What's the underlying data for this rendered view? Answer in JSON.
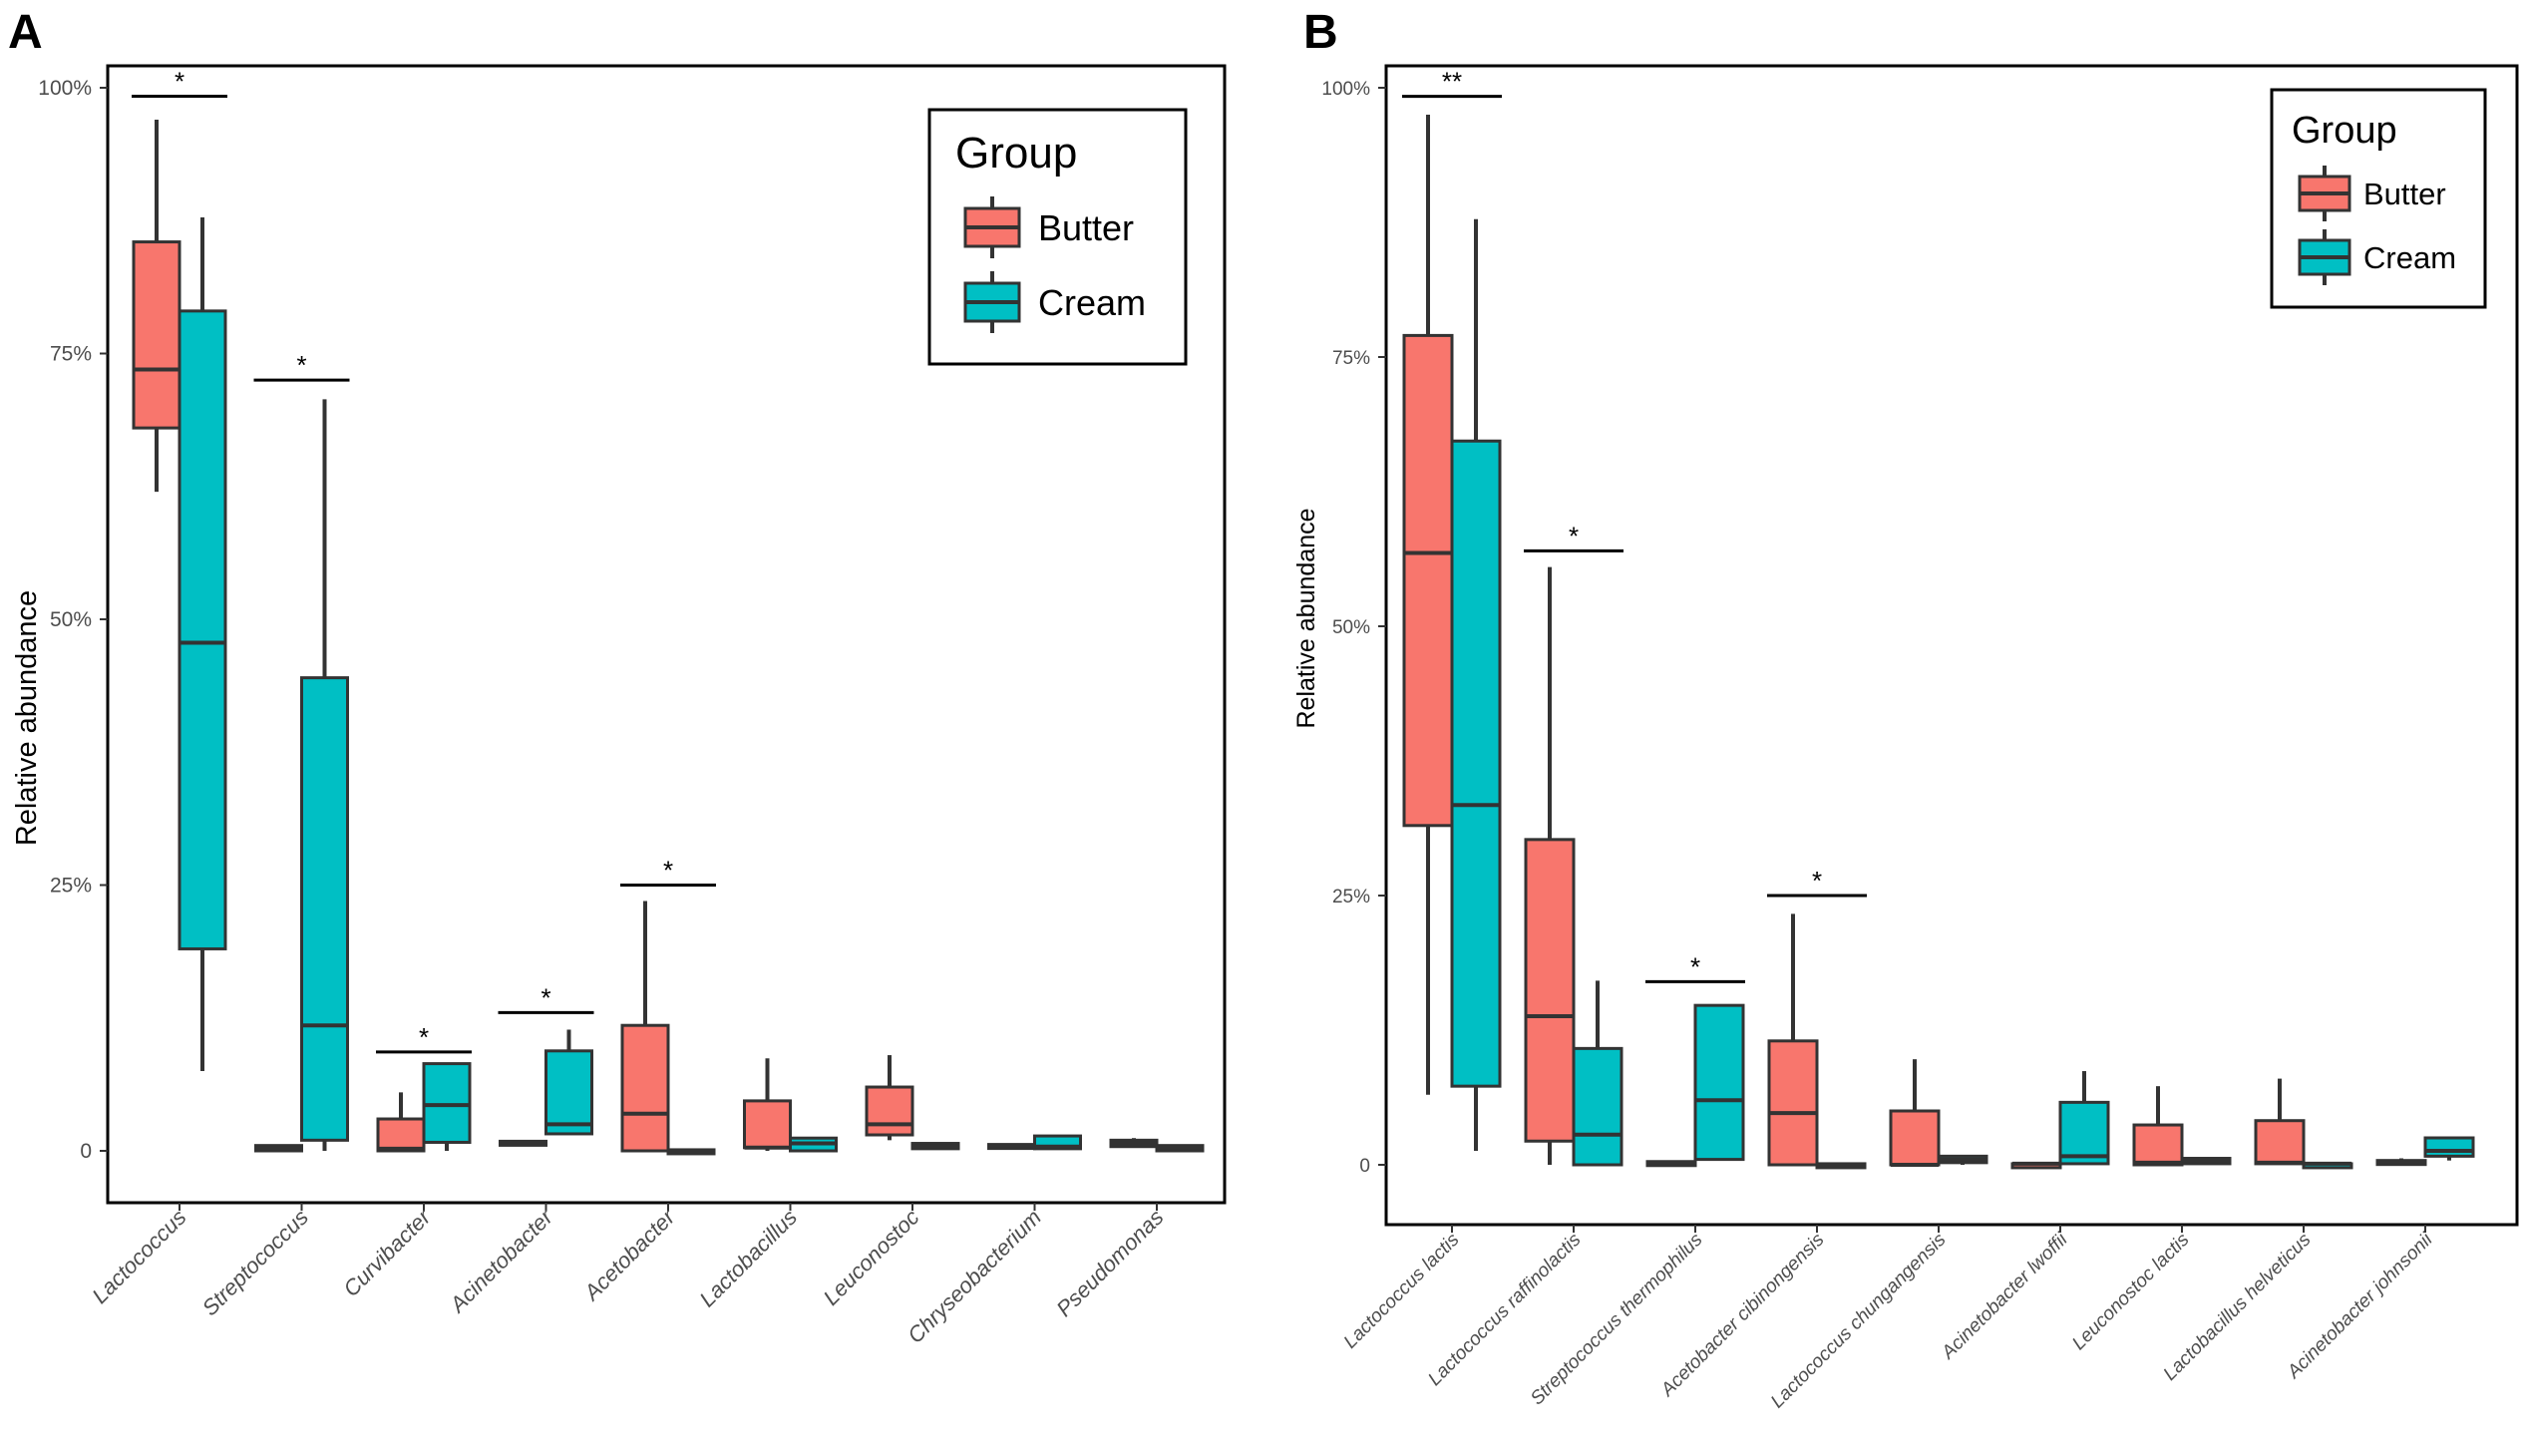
{
  "legend": {
    "title": "Group",
    "items": [
      {
        "label": "Butter",
        "color": "#F8766D"
      },
      {
        "label": "Cream",
        "color": "#00BFC4"
      }
    ]
  },
  "chart_data": [
    {
      "type": "boxplot",
      "panel_label": "A",
      "ylabel": "Relative abundance",
      "ylim": [
        -0.05,
        1.0
      ],
      "yticks": [
        0,
        0.25,
        0.5,
        0.75,
        1.0
      ],
      "ytick_labels": [
        "0",
        "25%",
        "50%",
        "75%",
        "100%"
      ],
      "categories": [
        "Lactococcus",
        "Streptococcus",
        "Curvibacter",
        "Acinetobacter",
        "Acetobacter",
        "Lactobacillus",
        "Leuconostoc",
        "Chryseobacterium",
        "Pseudomonas"
      ],
      "series": [
        {
          "name": "Butter",
          "boxes": [
            {
              "min": 0.62,
              "q1": 0.68,
              "median": 0.735,
              "q3": 0.855,
              "max": 0.97
            },
            {
              "min": 0.0,
              "q1": 0.0,
              "median": 0.002,
              "q3": 0.005,
              "max": 0.006
            },
            {
              "min": 0.0,
              "q1": 0.0,
              "median": 0.002,
              "q3": 0.03,
              "max": 0.055
            },
            {
              "min": 0.007,
              "q1": 0.007,
              "median": 0.008,
              "q3": 0.009,
              "max": 0.009
            },
            {
              "min": 0.0,
              "q1": 0.0,
              "median": 0.035,
              "q3": 0.118,
              "max": 0.235
            },
            {
              "min": 0.0,
              "q1": 0.003,
              "median": 0.003,
              "q3": 0.047,
              "max": 0.087
            },
            {
              "min": 0.01,
              "q1": 0.015,
              "median": 0.025,
              "q3": 0.06,
              "max": 0.09
            },
            {
              "min": 0.003,
              "q1": 0.003,
              "median": 0.005,
              "q3": 0.006,
              "max": 0.007
            },
            {
              "min": 0.004,
              "q1": 0.004,
              "median": 0.007,
              "q3": 0.01,
              "max": 0.012
            }
          ]
        },
        {
          "name": "Cream",
          "boxes": [
            {
              "min": 0.075,
              "q1": 0.19,
              "median": 0.478,
              "q3": 0.79,
              "max": 0.878
            },
            {
              "min": 0.0,
              "q1": 0.01,
              "median": 0.118,
              "q3": 0.445,
              "max": 0.707
            },
            {
              "min": 0.0,
              "q1": 0.008,
              "median": 0.043,
              "q3": 0.082,
              "max": 0.082
            },
            {
              "min": 0.016,
              "q1": 0.016,
              "median": 0.025,
              "q3": 0.094,
              "max": 0.114
            },
            {
              "min": 0.0,
              "q1": 0.0,
              "median": 0.0,
              "q3": 0.001,
              "max": 0.001
            },
            {
              "min": 0.0,
              "q1": 0.0,
              "median": 0.007,
              "q3": 0.012,
              "max": 0.013
            },
            {
              "min": 0.002,
              "q1": 0.002,
              "median": 0.004,
              "q3": 0.007,
              "max": 0.007
            },
            {
              "min": 0.002,
              "q1": 0.002,
              "median": 0.004,
              "q3": 0.014,
              "max": 0.014
            },
            {
              "min": 0.0,
              "q1": 0.0,
              "median": 0.003,
              "q3": 0.005,
              "max": 0.005
            }
          ]
        }
      ],
      "significance": [
        {
          "category_index": 0,
          "label": "*",
          "y": 0.992
        },
        {
          "category_index": 1,
          "label": "*",
          "y": 0.725
        },
        {
          "category_index": 2,
          "label": "*",
          "y": 0.093
        },
        {
          "category_index": 3,
          "label": "*",
          "y": 0.13
        },
        {
          "category_index": 4,
          "label": "*",
          "y": 0.25
        }
      ]
    },
    {
      "type": "boxplot",
      "panel_label": "B",
      "ylabel": "Relative abundance",
      "ylim": [
        -0.05,
        1.0
      ],
      "yticks": [
        0,
        0.25,
        0.5,
        0.75,
        1.0
      ],
      "ytick_labels": [
        "0",
        "25%",
        "50%",
        "75%",
        "100%"
      ],
      "categories": [
        "Lactococcus lactis",
        "Lactococcus raffinolactis",
        "Streptococcus thermophilus",
        "Acetobacter cibinongensis",
        "Lactococcus chungangensis",
        "Acinetobacter lwoffii",
        "Leuconostoc lactis",
        "Lactobacillus helveticus",
        "Acinetobacter johnsonii"
      ],
      "series": [
        {
          "name": "Butter",
          "boxes": [
            {
              "min": 0.065,
              "q1": 0.315,
              "median": 0.568,
              "q3": 0.77,
              "max": 0.975
            },
            {
              "min": 0.0,
              "q1": 0.022,
              "median": 0.138,
              "q3": 0.302,
              "max": 0.555
            },
            {
              "min": 0.0,
              "q1": 0.0,
              "median": 0.002,
              "q3": 0.003,
              "max": 0.004
            },
            {
              "min": 0.0,
              "q1": 0.0,
              "median": 0.048,
              "q3": 0.115,
              "max": 0.233
            },
            {
              "min": 0.0,
              "q1": 0.0,
              "median": 0.0,
              "q3": 0.05,
              "max": 0.098
            },
            {
              "min": 0.0,
              "q1": 0.0,
              "median": 0.001,
              "q3": 0.001,
              "max": 0.002
            },
            {
              "min": 0.0,
              "q1": 0.0,
              "median": 0.002,
              "q3": 0.037,
              "max": 0.073
            },
            {
              "min": 0.0,
              "q1": 0.001,
              "median": 0.002,
              "q3": 0.041,
              "max": 0.08
            },
            {
              "min": 0.002,
              "q1": 0.002,
              "median": 0.003,
              "q3": 0.004,
              "max": 0.006
            }
          ]
        },
        {
          "name": "Cream",
          "boxes": [
            {
              "min": 0.013,
              "q1": 0.073,
              "median": 0.334,
              "q3": 0.672,
              "max": 0.878
            },
            {
              "min": 0.0,
              "q1": 0.0,
              "median": 0.028,
              "q3": 0.108,
              "max": 0.171
            },
            {
              "min": 0.004,
              "q1": 0.005,
              "median": 0.06,
              "q3": 0.148,
              "max": 0.148
            },
            {
              "min": 0.0,
              "q1": 0.0,
              "median": 0.0,
              "q3": 0.001,
              "max": 0.001
            },
            {
              "min": 0.0,
              "q1": 0.002,
              "median": 0.005,
              "q3": 0.008,
              "max": 0.009
            },
            {
              "min": 0.0,
              "q1": 0.001,
              "median": 0.008,
              "q3": 0.058,
              "max": 0.087
            },
            {
              "min": 0.001,
              "q1": 0.001,
              "median": 0.004,
              "q3": 0.006,
              "max": 0.006
            },
            {
              "min": 0.0,
              "q1": 0.0,
              "median": 0.001,
              "q3": 0.001,
              "max": 0.001
            },
            {
              "min": 0.004,
              "q1": 0.008,
              "median": 0.013,
              "q3": 0.025,
              "max": 0.025
            }
          ]
        }
      ],
      "significance": [
        {
          "category_index": 0,
          "label": "**",
          "y": 0.992
        },
        {
          "category_index": 1,
          "label": "*",
          "y": 0.57
        },
        {
          "category_index": 2,
          "label": "*",
          "y": 0.17
        },
        {
          "category_index": 3,
          "label": "*",
          "y": 0.25
        }
      ]
    }
  ]
}
